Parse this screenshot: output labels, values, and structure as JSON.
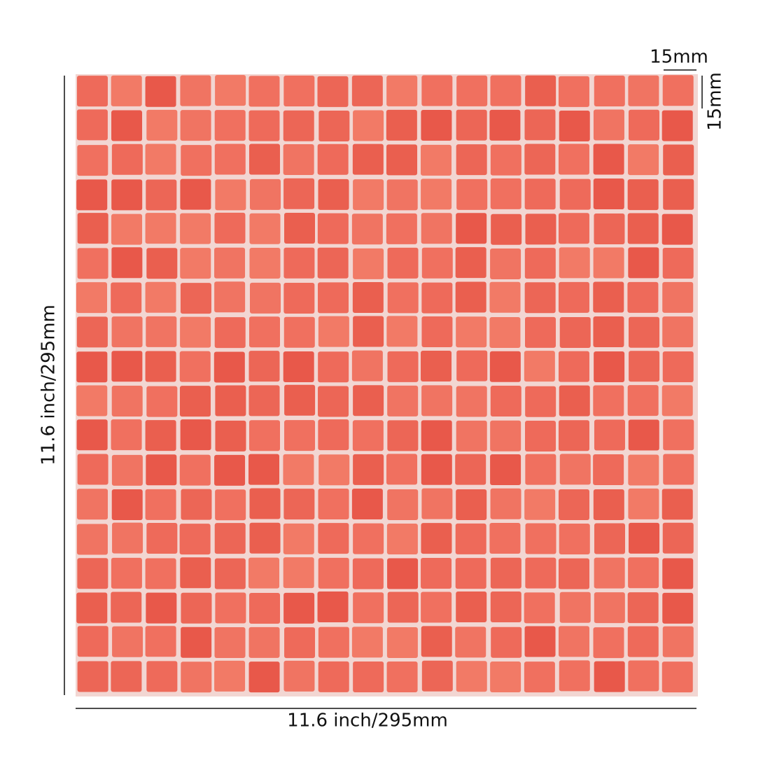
{
  "dimensions": {
    "tile_width": "15mm",
    "tile_height": "15mm",
    "sheet_height": "11.6 inch/295mm",
    "sheet_width": "11.6 inch/295mm"
  }
}
